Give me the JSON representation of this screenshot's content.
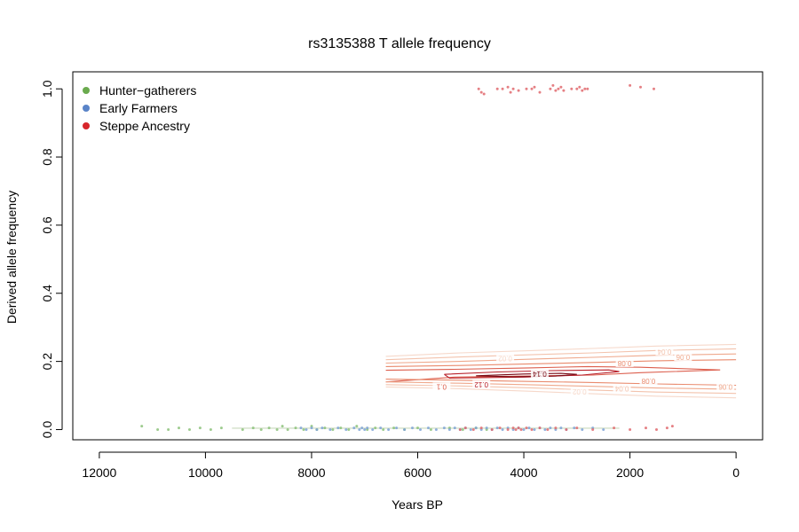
{
  "chart_data": {
    "type": "scatter",
    "title": "rs3135388 T allele frequency",
    "xlabel": "Years BP",
    "ylabel": "Derived allele frequency",
    "xlim": [
      12500,
      -500
    ],
    "ylim": [
      -0.03,
      1.05
    ],
    "x_ticks": [
      {
        "value": 12000,
        "label": "12000"
      },
      {
        "value": 10000,
        "label": "10000"
      },
      {
        "value": 8000,
        "label": "8000"
      },
      {
        "value": 6000,
        "label": "6000"
      },
      {
        "value": 4000,
        "label": "4000"
      },
      {
        "value": 2000,
        "label": "2000"
      },
      {
        "value": 0,
        "label": "0"
      }
    ],
    "y_ticks": [
      {
        "value": 0.0,
        "label": "0.0"
      },
      {
        "value": 0.2,
        "label": "0.2"
      },
      {
        "value": 0.4,
        "label": "0.4"
      },
      {
        "value": 0.6,
        "label": "0.6"
      },
      {
        "value": 0.8,
        "label": "0.8"
      },
      {
        "value": 1.0,
        "label": "1.0"
      }
    ],
    "legend_position": "top-left",
    "series": [
      {
        "name": "Hunter−gatherers",
        "legend_color": "#6aaa4e",
        "color": "#8cc27a",
        "points": [
          [
            11200,
            0.01
          ],
          [
            10900,
            0
          ],
          [
            10700,
            0
          ],
          [
            10500,
            0.005
          ],
          [
            10300,
            0
          ],
          [
            10100,
            0.005
          ],
          [
            9900,
            0
          ],
          [
            9700,
            0.005
          ],
          [
            9300,
            0
          ],
          [
            9100,
            0.005
          ],
          [
            8950,
            0
          ],
          [
            8800,
            0.005
          ],
          [
            8650,
            0
          ],
          [
            8550,
            0.01
          ],
          [
            8450,
            0
          ],
          [
            8300,
            0.005
          ],
          [
            8150,
            0
          ],
          [
            8000,
            0.01
          ],
          [
            7900,
            0
          ],
          [
            7750,
            0.005
          ],
          [
            7600,
            0
          ],
          [
            7450,
            0.005
          ],
          [
            7300,
            0
          ],
          [
            7150,
            0.01
          ],
          [
            6950,
            0
          ],
          [
            6800,
            0.005
          ],
          [
            6650,
            0
          ],
          [
            6450,
            0.005
          ],
          [
            6250,
            0
          ],
          [
            6000,
            0.005
          ],
          [
            5750,
            0
          ],
          [
            5400,
            0.005
          ],
          [
            5150,
            0
          ],
          [
            4900,
            0.005
          ],
          [
            4700,
            0
          ]
        ]
      },
      {
        "name": "Early Farmers",
        "legend_color": "#5a84c8",
        "color": "#7fa3d6",
        "points": [
          [
            8200,
            0.005
          ],
          [
            8100,
            0
          ],
          [
            8000,
            0.005
          ],
          [
            7900,
            0
          ],
          [
            7800,
            0.005
          ],
          [
            7650,
            0
          ],
          [
            7500,
            0.005
          ],
          [
            7350,
            0
          ],
          [
            7200,
            0.005
          ],
          [
            7100,
            0
          ],
          [
            7050,
            0.005
          ],
          [
            7000,
            0
          ],
          [
            6950,
            0.005
          ],
          [
            6850,
            0
          ],
          [
            6700,
            0.005
          ],
          [
            6550,
            0
          ],
          [
            6400,
            0.005
          ],
          [
            6250,
            0
          ],
          [
            6100,
            0.005
          ],
          [
            5950,
            0
          ],
          [
            5800,
            0.005
          ],
          [
            5650,
            0
          ],
          [
            5500,
            0.005
          ],
          [
            5400,
            0
          ],
          [
            5300,
            0.005
          ],
          [
            5200,
            0
          ],
          [
            5100,
            0.005
          ],
          [
            5000,
            0
          ],
          [
            4900,
            0.005
          ],
          [
            4800,
            0
          ],
          [
            4700,
            0.005
          ],
          [
            4600,
            0
          ],
          [
            4500,
            0.005
          ],
          [
            4400,
            0
          ],
          [
            4300,
            0.005
          ],
          [
            4200,
            0
          ],
          [
            4100,
            0.005
          ],
          [
            4000,
            0
          ],
          [
            3900,
            0.005
          ],
          [
            3800,
            0
          ],
          [
            3700,
            0.005
          ],
          [
            3600,
            0
          ],
          [
            3500,
            0.005
          ],
          [
            3400,
            0
          ],
          [
            3300,
            0.005
          ],
          [
            3200,
            0
          ],
          [
            3050,
            0.005
          ],
          [
            2900,
            0
          ],
          [
            2700,
            0.005
          ],
          [
            2500,
            0
          ]
        ]
      },
      {
        "name": "Steppe Ancestry",
        "legend_color": "#d7262b",
        "color": "#e06a6e",
        "points": [
          [
            4850,
            1.0
          ],
          [
            4800,
            0.99
          ],
          [
            4750,
            0.985
          ],
          [
            4500,
            1.0
          ],
          [
            4400,
            1.0
          ],
          [
            4300,
            1.005
          ],
          [
            4250,
            0.99
          ],
          [
            4200,
            1.0
          ],
          [
            4100,
            0.995
          ],
          [
            3950,
            1.0
          ],
          [
            3850,
            1.0
          ],
          [
            3800,
            1.005
          ],
          [
            3700,
            0.99
          ],
          [
            3500,
            1.0
          ],
          [
            3450,
            1.01
          ],
          [
            3400,
            0.995
          ],
          [
            3350,
            1.0
          ],
          [
            3300,
            1.005
          ],
          [
            3250,
            0.995
          ],
          [
            3100,
            1.0
          ],
          [
            3000,
            1.0
          ],
          [
            2950,
            1.005
          ],
          [
            2900,
            0.995
          ],
          [
            2850,
            1.0
          ],
          [
            2800,
            1.0
          ],
          [
            2000,
            1.01
          ],
          [
            1800,
            1.005
          ],
          [
            1550,
            1.0
          ],
          [
            5200,
            0
          ],
          [
            5100,
            0.005
          ],
          [
            4950,
            0
          ],
          [
            4800,
            0.005
          ],
          [
            4600,
            0
          ],
          [
            4450,
            0.005
          ],
          [
            4300,
            0
          ],
          [
            4200,
            0.005
          ],
          [
            4150,
            0
          ],
          [
            4100,
            0.005
          ],
          [
            4050,
            0
          ],
          [
            3950,
            0.005
          ],
          [
            3850,
            0
          ],
          [
            3700,
            0.005
          ],
          [
            3550,
            0
          ],
          [
            3400,
            0.005
          ],
          [
            3200,
            0
          ],
          [
            3000,
            0.005
          ],
          [
            2700,
            0
          ],
          [
            2300,
            0.005
          ],
          [
            2000,
            0
          ],
          [
            1700,
            0.005
          ],
          [
            1500,
            0
          ],
          [
            1300,
            0.005
          ],
          [
            1200,
            0.01
          ]
        ]
      }
    ],
    "contours": [
      {
        "label": "0.02",
        "color": "#f6d8ca",
        "points": [
          [
            6600,
            0.215
          ],
          [
            5200,
            0.225
          ],
          [
            3800,
            0.232
          ],
          [
            2700,
            0.238
          ],
          [
            1500,
            0.245
          ],
          [
            0,
            0.25
          ]
        ]
      },
      {
        "label": "0.04",
        "color": "#f3c3ad",
        "points": [
          [
            6600,
            0.205
          ],
          [
            5200,
            0.213
          ],
          [
            3800,
            0.22
          ],
          [
            2700,
            0.225
          ],
          [
            1500,
            0.232
          ],
          [
            0,
            0.237
          ]
        ]
      },
      {
        "label": "0.06",
        "color": "#efa98d",
        "points": [
          [
            6600,
            0.195
          ],
          [
            5200,
            0.2
          ],
          [
            3800,
            0.207
          ],
          [
            2700,
            0.212
          ],
          [
            1500,
            0.218
          ],
          [
            0,
            0.222
          ]
        ]
      },
      {
        "label": "0.08",
        "color": "#e98a6d",
        "points": [
          [
            6600,
            0.185
          ],
          [
            5200,
            0.188
          ],
          [
            3800,
            0.193
          ],
          [
            2700,
            0.197
          ],
          [
            1500,
            0.202
          ],
          [
            0,
            0.205
          ]
        ]
      },
      {
        "label": "0.1",
        "color": "#dc5e4d",
        "points": [
          [
            6600,
            0.174
          ],
          [
            5300,
            0.177
          ],
          [
            3900,
            0.181
          ],
          [
            2800,
            0.185
          ],
          [
            1800,
            0.183
          ],
          [
            300,
            0.175
          ],
          [
            1800,
            0.167
          ],
          [
            2700,
            0.16
          ],
          [
            3900,
            0.157
          ],
          [
            5300,
            0.154
          ],
          [
            6600,
            0.14
          ]
        ]
      },
      {
        "label": "0.12",
        "color": "#b8212b",
        "points": [
          [
            5500,
            0.162
          ],
          [
            4500,
            0.169
          ],
          [
            3500,
            0.173
          ],
          [
            2400,
            0.175
          ],
          [
            2200,
            0.17
          ],
          [
            2900,
            0.16
          ],
          [
            4000,
            0.154
          ],
          [
            5400,
            0.151
          ],
          [
            5500,
            0.162
          ]
        ]
      },
      {
        "label": "0.14",
        "color": "#7a0b16",
        "points": [
          [
            4900,
            0.158
          ],
          [
            4000,
            0.163
          ],
          [
            3300,
            0.165
          ],
          [
            3000,
            0.162
          ],
          [
            3400,
            0.157
          ],
          [
            4200,
            0.155
          ],
          [
            4900,
            0.158
          ]
        ]
      },
      {
        "label": "0.02",
        "color": "#f6d8ca",
        "points": [
          [
            6600,
            0.125
          ],
          [
            5200,
            0.12
          ],
          [
            3800,
            0.112
          ],
          [
            2700,
            0.105
          ],
          [
            1500,
            0.098
          ],
          [
            0,
            0.093
          ]
        ]
      },
      {
        "label": "0.04",
        "color": "#f3c3ad",
        "points": [
          [
            6600,
            0.132
          ],
          [
            5200,
            0.128
          ],
          [
            3800,
            0.122
          ],
          [
            2700,
            0.116
          ],
          [
            1500,
            0.11
          ],
          [
            0,
            0.106
          ]
        ]
      },
      {
        "label": "0.06",
        "color": "#efa98d",
        "points": [
          [
            6600,
            0.14
          ],
          [
            5200,
            0.136
          ],
          [
            3800,
            0.131
          ],
          [
            2700,
            0.127
          ],
          [
            1500,
            0.122
          ],
          [
            0,
            0.118
          ]
        ]
      },
      {
        "label": "0.08",
        "color": "#e98a6d",
        "points": [
          [
            6600,
            0.148
          ],
          [
            5200,
            0.145
          ],
          [
            3800,
            0.141
          ],
          [
            2700,
            0.138
          ],
          [
            1500,
            0.134
          ],
          [
            0,
            0.13
          ]
        ]
      }
    ],
    "contour_labels": [
      {
        "text": "0.02",
        "x": 4350,
        "y": 0.208,
        "color": "#f6d8ca"
      },
      {
        "text": "0.04",
        "x": 1350,
        "y": 0.228,
        "color": "#f3c3ad"
      },
      {
        "text": "0.06",
        "x": 1000,
        "y": 0.212,
        "color": "#efa98d"
      },
      {
        "text": "0.08",
        "x": 2100,
        "y": 0.194,
        "color": "#e98a6d"
      },
      {
        "text": "0.14",
        "x": 3700,
        "y": 0.163,
        "color": "#7a0b16"
      },
      {
        "text": "0.12",
        "x": 4800,
        "y": 0.132,
        "color": "#b8212b"
      },
      {
        "text": "0.1",
        "x": 5550,
        "y": 0.125,
        "color": "#dc5e4d"
      },
      {
        "text": "0.08",
        "x": 1650,
        "y": 0.142,
        "color": "#e98a6d"
      },
      {
        "text": "0.04",
        "x": 2150,
        "y": 0.12,
        "color": "#f3c3ad"
      },
      {
        "text": "0.02",
        "x": 2950,
        "y": 0.11,
        "color": "#f6d8ca"
      },
      {
        "text": "0.06",
        "x": 200,
        "y": 0.125,
        "color": "#efa98d"
      }
    ]
  }
}
